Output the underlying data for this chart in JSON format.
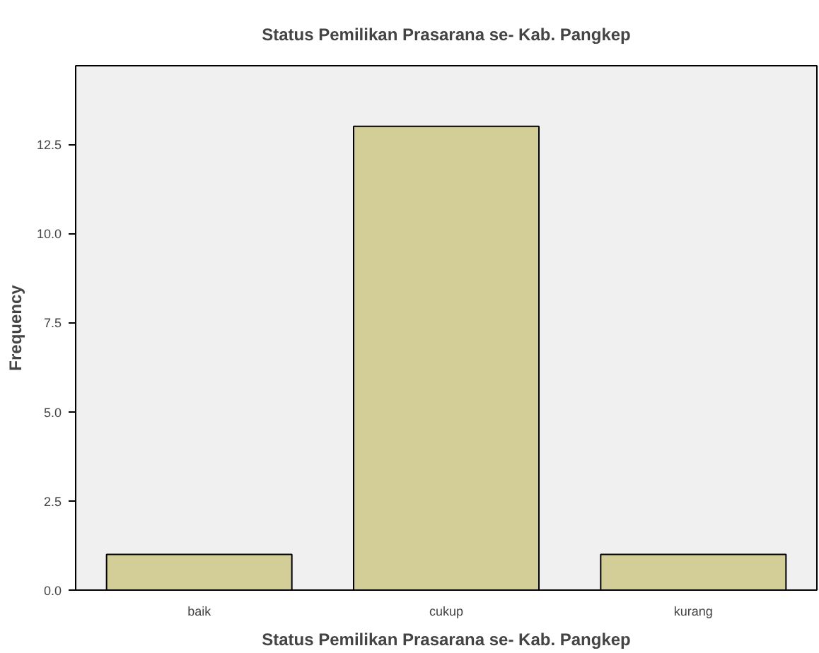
{
  "chart_data": {
    "type": "bar",
    "title": "Status Pemilikan Prasarana se- Kab. Pangkep",
    "xlabel": "Status Pemilikan Prasarana se- Kab. Pangkep",
    "ylabel": "Frequency",
    "categories": [
      "baik",
      "cukup",
      "kurang"
    ],
    "values": [
      1,
      13,
      1
    ],
    "color": "#d3ce97",
    "ylim": [
      0,
      14.7
    ],
    "yticks": [
      {
        "value": 0,
        "label": "0.0"
      },
      {
        "value": 2.5,
        "label": "2.5"
      },
      {
        "value": 5,
        "label": "5.0"
      },
      {
        "value": 7.5,
        "label": "7.5"
      },
      {
        "value": 10,
        "label": "10.0"
      },
      {
        "value": 12.5,
        "label": "12.5"
      }
    ],
    "grid": false
  }
}
